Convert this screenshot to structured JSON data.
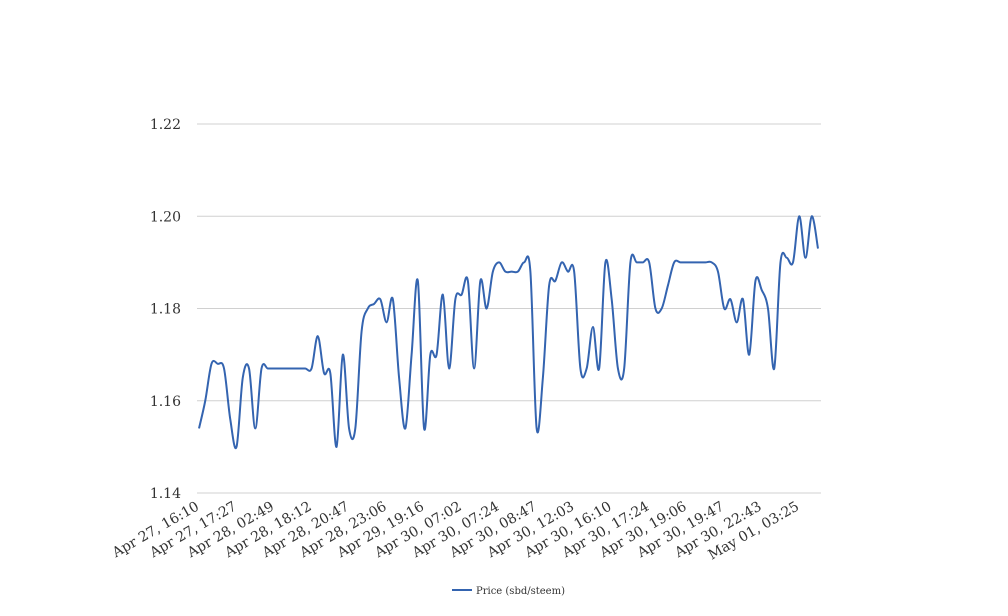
{
  "chart_data": {
    "type": "line",
    "title": "",
    "xlabel": "",
    "ylabel": "",
    "ylim": [
      1.14,
      1.22
    ],
    "y_ticks": [
      "1.14",
      "1.16",
      "1.18",
      "1.20",
      "1.22"
    ],
    "y_tick_values": [
      1.14,
      1.16,
      1.18,
      1.2,
      1.22
    ],
    "x_tick_labels": [
      "Apr 27, 16:10",
      "Apr 27, 17:27",
      "Apr 28, 02:49",
      "Apr 28, 18:12",
      "Apr 28, 20:47",
      "Apr 28, 23:06",
      "Apr 29, 19:16",
      "Apr 30, 07:02",
      "Apr 30, 07:24",
      "Apr 30, 08:47",
      "Apr 30, 12:03",
      "Apr 30, 16:10",
      "Apr 30, 17:24",
      "Apr 30, 19:06",
      "Apr 30, 19:47",
      "Apr 30, 22:43",
      "May 01, 03:25"
    ],
    "grid": true,
    "legend_position": "bottom",
    "line_color": "#3464b0",
    "series": [
      {
        "name": "Price (sbd/steem)",
        "values": [
          1.154,
          1.16,
          1.168,
          1.168,
          1.167,
          1.156,
          1.15,
          1.165,
          1.167,
          1.154,
          1.167,
          1.167,
          1.167,
          1.167,
          1.167,
          1.167,
          1.167,
          1.167,
          1.167,
          1.174,
          1.166,
          1.166,
          1.15,
          1.17,
          1.154,
          1.154,
          1.175,
          1.18,
          1.181,
          1.182,
          1.177,
          1.182,
          1.165,
          1.154,
          1.17,
          1.186,
          1.154,
          1.17,
          1.17,
          1.183,
          1.167,
          1.182,
          1.183,
          1.186,
          1.167,
          1.186,
          1.18,
          1.188,
          1.19,
          1.188,
          1.188,
          1.188,
          1.19,
          1.188,
          1.154,
          1.165,
          1.185,
          1.186,
          1.19,
          1.188,
          1.188,
          1.167,
          1.167,
          1.176,
          1.167,
          1.19,
          1.182,
          1.167,
          1.167,
          1.19,
          1.19,
          1.19,
          1.19,
          1.18,
          1.18,
          1.185,
          1.19,
          1.19,
          1.19,
          1.19,
          1.19,
          1.19,
          1.19,
          1.188,
          1.18,
          1.182,
          1.177,
          1.182,
          1.17,
          1.186,
          1.184,
          1.18,
          1.167,
          1.19,
          1.191,
          1.19,
          1.2,
          1.191,
          1.2,
          1.193
        ]
      }
    ]
  }
}
